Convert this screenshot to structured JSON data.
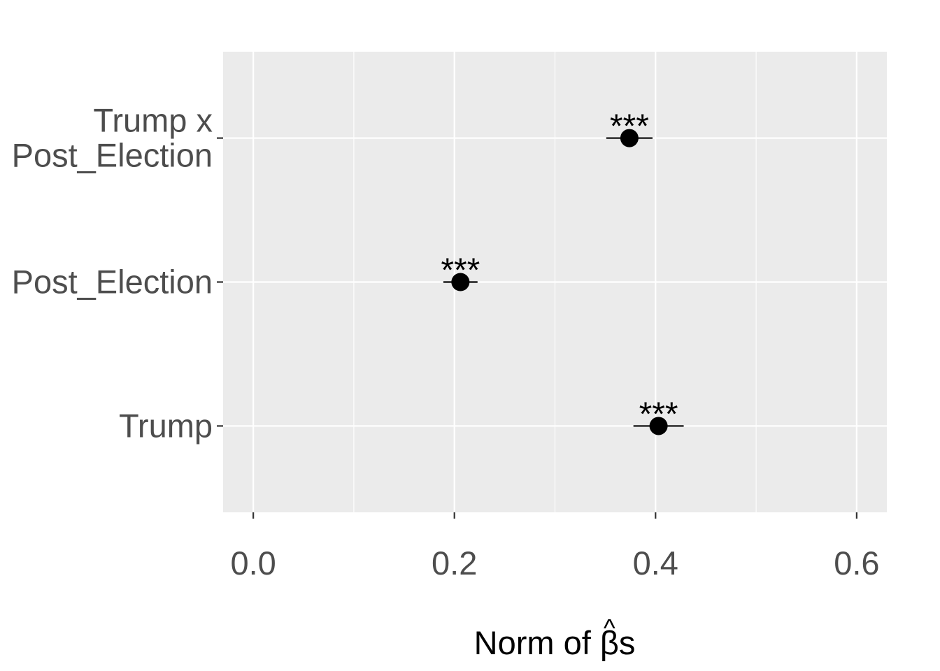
{
  "chart_data": {
    "type": "scatter",
    "subtype": "dot-and-whisker",
    "title": "",
    "xlabel": "Norm of β̂s",
    "xlabel_parts": {
      "before": "Norm of ",
      "symbol": "β",
      "after": "s"
    },
    "ylabel": "",
    "xlim": [
      -0.03,
      0.63
    ],
    "x_ticks": [
      0.0,
      0.2,
      0.4,
      0.6
    ],
    "x_tick_labels": [
      "0.0",
      "0.2",
      "0.4",
      "0.6"
    ],
    "x_minor_ticks": [
      0.1,
      0.3,
      0.5
    ],
    "categories": [
      "Trump x\nPost_Election",
      "Post_Election",
      "Trump"
    ],
    "series": [
      {
        "values": [
          0.374,
          0.206,
          0.403
        ],
        "ci_low": [
          0.351,
          0.189,
          0.378
        ],
        "ci_high": [
          0.397,
          0.223,
          0.428
        ],
        "annotations": [
          "***",
          "***",
          "***"
        ]
      }
    ],
    "grid": true,
    "legend": "none",
    "colors": {
      "panel": "#EBEBEB",
      "grid": "#FFFFFF",
      "point": "#000000",
      "tick_label": "#4D4D4D"
    }
  }
}
